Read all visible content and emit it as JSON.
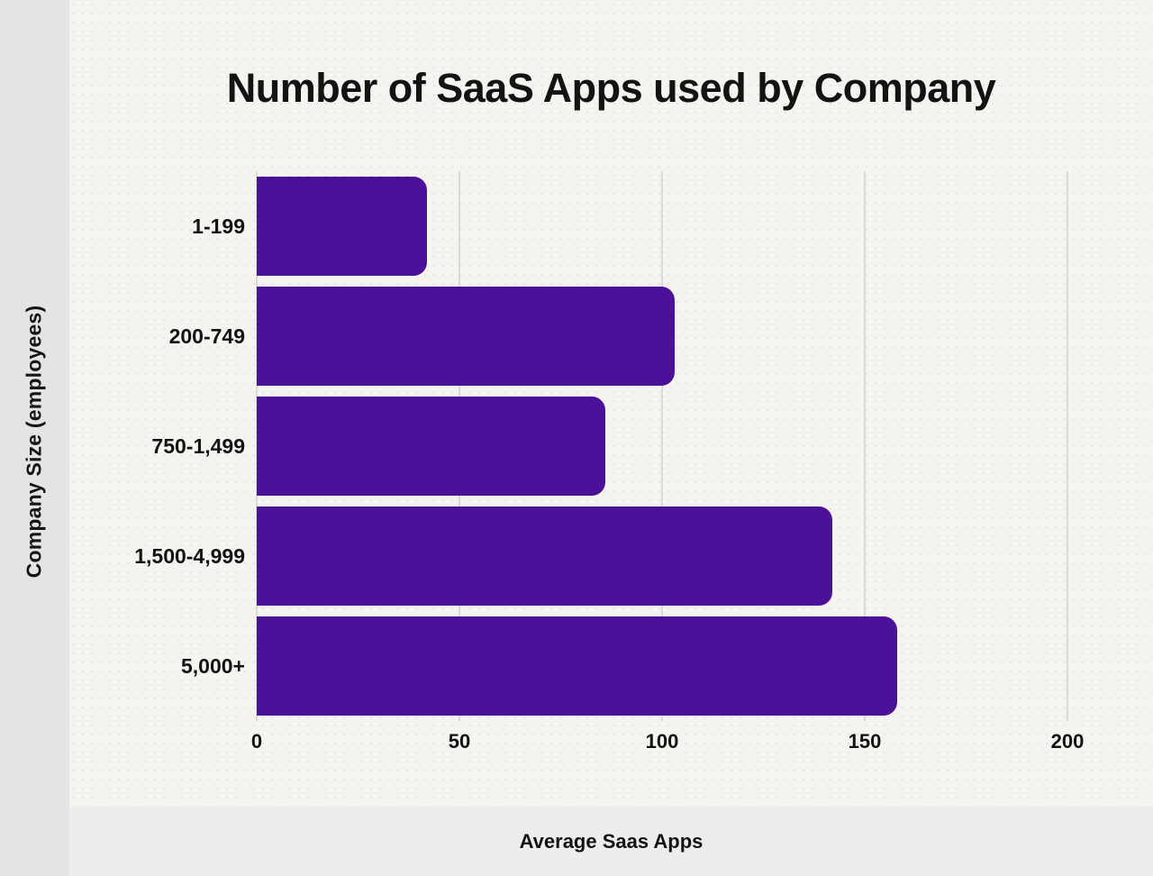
{
  "page": {
    "background_color": "#F5F4F1",
    "side_gutter_color": "#E4E4E4",
    "bottom_band_color": "#EDEDEC"
  },
  "chart_data": {
    "type": "bar",
    "orientation": "horizontal",
    "title": "Number of SaaS Apps used by Company",
    "categories": [
      "1-199",
      "200-749",
      "750-1,499",
      "1,500-4,999",
      "5,000+"
    ],
    "values": [
      42,
      103,
      86,
      142,
      158
    ],
    "xlabel": "Average Saas Apps",
    "ylabel": "Company Size (employees)",
    "xlim": [
      0,
      200
    ],
    "xticks": [
      0,
      50,
      100,
      150,
      200
    ],
    "grid": "vertical",
    "legend": "none",
    "colors": {
      "bar": "#4D1199",
      "gridline": "#DAD9DD",
      "title_text": "#131313",
      "axis_text": "#131313"
    }
  }
}
